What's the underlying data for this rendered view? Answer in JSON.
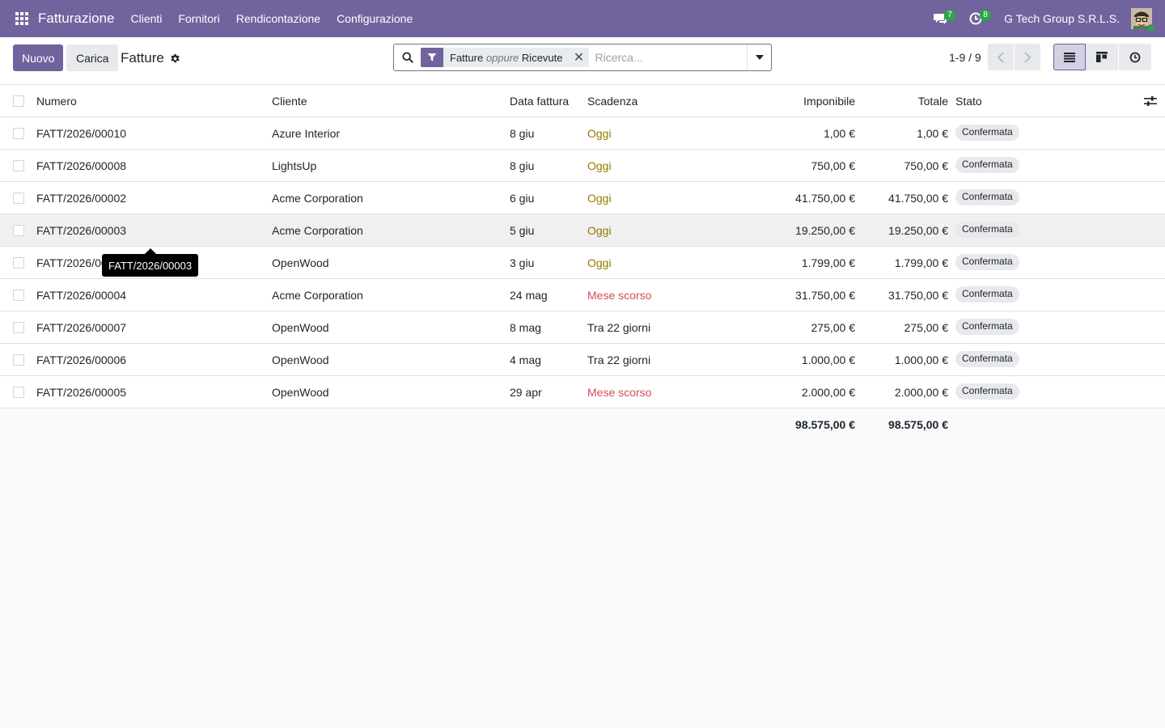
{
  "navbar": {
    "app_name": "Fatturazione",
    "menus": [
      "Clienti",
      "Fornitori",
      "Rendicontazione",
      "Configurazione"
    ],
    "messages_count": "7",
    "activities_count": "8",
    "company": "G Tech Group S.R.L.S."
  },
  "control": {
    "new_label": "Nuovo",
    "upload_label": "Carica",
    "breadcrumb": "Fatture",
    "search": {
      "facet_first": "Fatture",
      "facet_separator": "oppure",
      "facet_second": "Ricevute",
      "placeholder": "Ricerca..."
    },
    "pager": "1-9 / 9"
  },
  "table": {
    "columns": {
      "numero": "Numero",
      "cliente": "Cliente",
      "data": "Data fattura",
      "scadenza": "Scadenza",
      "imponibile": "Imponibile",
      "totale": "Totale",
      "stato": "Stato"
    },
    "rows": [
      {
        "numero": "FATT/2026/00010",
        "cliente": "Azure Interior",
        "data": "8 giu",
        "scadenza": "Oggi",
        "scad_state": "today",
        "imponibile": "1,00 €",
        "totale": "1,00 €",
        "stato": "Confermata"
      },
      {
        "numero": "FATT/2026/00008",
        "cliente": "LightsUp",
        "data": "8 giu",
        "scadenza": "Oggi",
        "scad_state": "today",
        "imponibile": "750,00 €",
        "totale": "750,00 €",
        "stato": "Confermata"
      },
      {
        "numero": "FATT/2026/00002",
        "cliente": "Acme Corporation",
        "data": "6 giu",
        "scadenza": "Oggi",
        "scad_state": "today",
        "imponibile": "41.750,00 €",
        "totale": "41.750,00 €",
        "stato": "Confermata"
      },
      {
        "numero": "FATT/2026/00003",
        "cliente": "Acme Corporation",
        "data": "5 giu",
        "scadenza": "Oggi",
        "scad_state": "today",
        "imponibile": "19.250,00 €",
        "totale": "19.250,00 €",
        "stato": "Confermata"
      },
      {
        "numero": "FATT/2026/00001",
        "cliente": "OpenWood",
        "data": "3 giu",
        "scadenza": "Oggi",
        "scad_state": "today",
        "imponibile": "1.799,00 €",
        "totale": "1.799,00 €",
        "stato": "Confermata"
      },
      {
        "numero": "FATT/2026/00004",
        "cliente": "Acme Corporation",
        "data": "24 mag",
        "scadenza": "Mese scorso",
        "scad_state": "late",
        "imponibile": "31.750,00 €",
        "totale": "31.750,00 €",
        "stato": "Confermata"
      },
      {
        "numero": "FATT/2026/00007",
        "cliente": "OpenWood",
        "data": "8 mag",
        "scadenza": "Tra 22 giorni",
        "scad_state": "future",
        "imponibile": "275,00 €",
        "totale": "275,00 €",
        "stato": "Confermata"
      },
      {
        "numero": "FATT/2026/00006",
        "cliente": "OpenWood",
        "data": "4 mag",
        "scadenza": "Tra 22 giorni",
        "scad_state": "future",
        "imponibile": "1.000,00 €",
        "totale": "1.000,00 €",
        "stato": "Confermata"
      },
      {
        "numero": "FATT/2026/00005",
        "cliente": "OpenWood",
        "data": "29 apr",
        "scadenza": "Mese scorso",
        "scad_state": "late",
        "imponibile": "2.000,00 €",
        "totale": "2.000,00 €",
        "stato": "Confermata"
      }
    ],
    "totals": {
      "imponibile": "98.575,00 €",
      "totale": "98.575,00 €"
    },
    "hovered_row": 3
  },
  "tooltip": {
    "text": "FATT/2026/00003"
  },
  "colors": {
    "brand": "#71639e",
    "due_today": "#9a7500",
    "due_late": "#d44c59",
    "online": "#28a745"
  },
  "icons": [
    "apps-icon",
    "chat-icon",
    "clock-icon",
    "gear-icon",
    "search-icon",
    "filter-icon",
    "close-icon",
    "caret-down-icon",
    "chevron-left-icon",
    "chevron-right-icon",
    "list-view-icon",
    "kanban-view-icon",
    "activity-view-icon",
    "optional-columns-icon"
  ]
}
